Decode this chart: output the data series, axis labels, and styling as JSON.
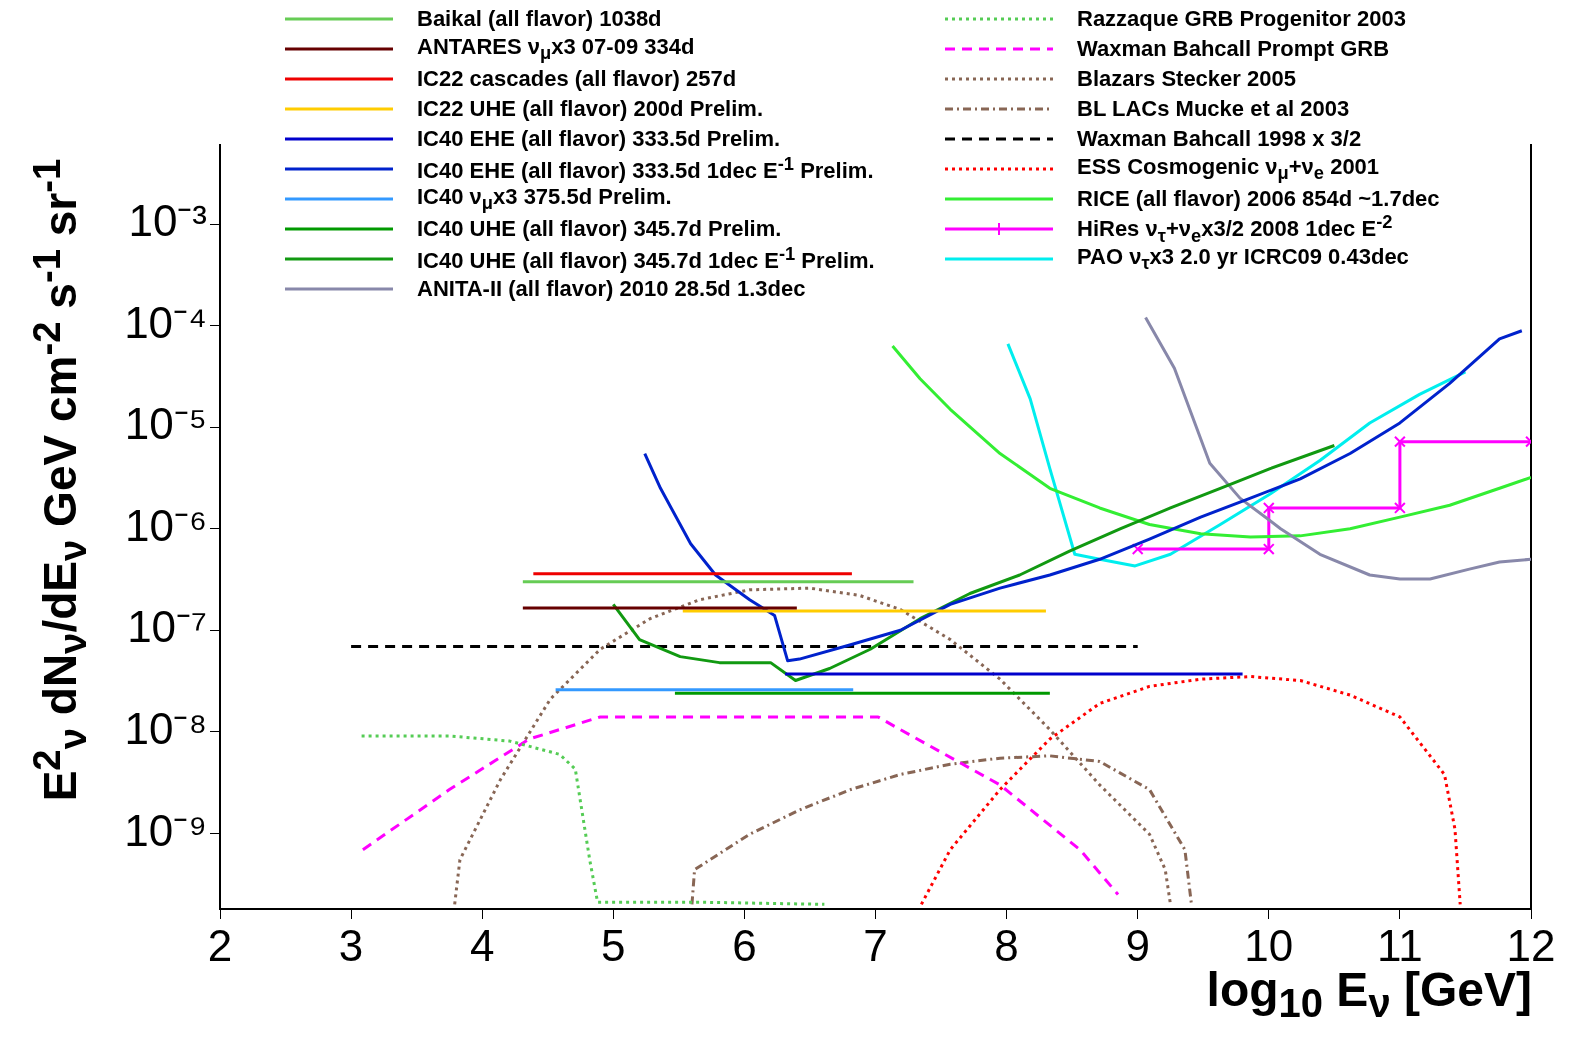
{
  "chart_data": {
    "type": "line",
    "xlabel": "log$_{10}$ E$_{ν}$ [GeV]",
    "ylabel": "E$^{2}$$_{ν}$ dN$_{ν}$/dE$_{ν}$  GeV cm$^{-2}$ s$^{-1}$ sr$^{-1}$",
    "log": "y",
    "grid": false,
    "legend": "top",
    "marker": "none",
    "xlim": [
      2,
      12
    ],
    "xticks": [
      2,
      3,
      4,
      5,
      6,
      7,
      8,
      9,
      10,
      11,
      12
    ],
    "ylim": [
      1.8e-10,
      0.006
    ],
    "yticks": [
      {
        "value": 1e-09,
        "label": "10⁻⁹"
      },
      {
        "value": 1e-08,
        "label": "10⁻⁸"
      },
      {
        "value": 1e-07,
        "label": "10⁻⁷"
      },
      {
        "value": 1e-06,
        "label": "10⁻⁶"
      },
      {
        "value": 1e-05,
        "label": "10⁻⁵"
      },
      {
        "value": 0.0001,
        "label": "10⁻⁴"
      },
      {
        "value": 0.001,
        "label": "10⁻³"
      }
    ],
    "series": [
      {
        "name": "Baikal (all flavor) 1038d",
        "color": "#66cc55",
        "line_style": "solid",
        "x": [
          4.31,
          7.29
        ],
        "values": [
          3e-07,
          3e-07
        ]
      },
      {
        "name": "ANTARES ν$_{μ}$x3 07-09 334d",
        "color": "#660000",
        "line_style": "solid",
        "x": [
          4.31,
          6.4
        ],
        "values": [
          1.66e-07,
          1.66e-07
        ]
      },
      {
        "name": "IC22 cascades (all flavor) 257d",
        "color": "#ee0000",
        "line_style": "solid",
        "x": [
          4.39,
          6.82
        ],
        "values": [
          3.6e-07,
          3.6e-07
        ]
      },
      {
        "name": "IC22 UHE (all flavor) 200d Prelim.",
        "color": "#ffcc00",
        "line_style": "solid",
        "x": [
          5.53,
          8.3
        ],
        "values": [
          1.55e-07,
          1.55e-07
        ]
      },
      {
        "name": "IC40 EHE (all flavor) 333.5d Prelim.",
        "color": "#0000cc",
        "line_style": "solid",
        "x": [
          6.31,
          9.8
        ],
        "values": [
          3.7e-08,
          3.7e-08
        ]
      },
      {
        "name": "IC40 EHE (all flavor) 333.5d 1dec E$^{-1}$ Prelim.",
        "color": "#0022cc",
        "line_style": "solid",
        "x": [
          5.24,
          5.36,
          5.59,
          5.78,
          6.04,
          6.23,
          6.33,
          6.42,
          6.81,
          7.19,
          7.57,
          7.95,
          8.33,
          8.71,
          9.09,
          9.48,
          9.86,
          10.24,
          10.62,
          11.0,
          11.38,
          11.76,
          11.93
        ],
        "values": [
          5.5e-06,
          2.5e-06,
          7.1e-07,
          3.5e-07,
          2e-07,
          1.4e-07,
          5e-08,
          5.2e-08,
          7.2e-08,
          1e-07,
          1.8e-07,
          2.6e-07,
          3.5e-07,
          5e-07,
          7.9e-07,
          1.3e-06,
          2e-06,
          3.1e-06,
          5.5e-06,
          1.1e-05,
          2.7e-05,
          7.4e-05,
          8.9e-05
        ]
      },
      {
        "name": "IC40 ν$_{μ}$x3 375.5d Prelim.",
        "color": "#3399ff",
        "line_style": "solid",
        "x": [
          4.56,
          6.83
        ],
        "values": [
          2.6e-08,
          2.6e-08
        ]
      },
      {
        "name": "IC40 UHE (all flavor) 345.7d Prelim.",
        "color": "#009900",
        "line_style": "solid",
        "x": [
          5.47,
          8.33
        ],
        "values": [
          2.4e-08,
          2.4e-08
        ]
      },
      {
        "name": "IC40 UHE (all flavor) 345.7d 1dec E$^{-1}$ Prelim.",
        "color": "#119911",
        "line_style": "solid",
        "x": [
          5.0,
          5.2,
          5.51,
          5.81,
          6.2,
          6.39,
          6.65,
          6.96,
          7.34,
          7.72,
          8.1,
          8.48,
          8.87,
          9.25,
          9.63,
          10.01,
          10.5
        ],
        "values": [
          1.8e-07,
          8.1e-08,
          5.5e-08,
          4.8e-08,
          4.8e-08,
          3.2e-08,
          4.2e-08,
          6.5e-08,
          1.3e-07,
          2.3e-07,
          3.5e-07,
          6e-07,
          1e-06,
          1.6e-06,
          2.5e-06,
          3.9e-06,
          6.6e-06
        ]
      },
      {
        "name": "ANITA-II (all flavor) 2010 28.5d 1.3dec",
        "color": "#8888aa",
        "line_style": "solid",
        "x": [
          9.06,
          9.28,
          9.55,
          9.78,
          10.09,
          10.39,
          10.77,
          11.0,
          11.23,
          11.53,
          11.76,
          12.0
        ],
        "values": [
          0.00012,
          3.8e-05,
          4.4e-06,
          2e-06,
          1e-06,
          5.6e-07,
          3.5e-07,
          3.2e-07,
          3.2e-07,
          4e-07,
          4.7e-07,
          5e-07
        ]
      },
      {
        "name": "Razzaque GRB Progenitor 2003",
        "color": "#55cc55",
        "line_style": "dotted",
        "x": [
          3.08,
          3.75,
          4.21,
          4.59,
          4.71,
          4.82,
          4.88,
          5.66,
          6.61
        ],
        "values": [
          9.1e-09,
          9.1e-09,
          8.1e-09,
          6e-09,
          4.3e-09,
          5.5e-10,
          2.1e-10,
          2.1e-10,
          2e-10
        ]
      },
      {
        "name": "Waxman Bahcall Prompt GRB",
        "color": "#ff00ff",
        "line_style": "dashed",
        "x": [
          3.09,
          3.75,
          4.36,
          4.9,
          5.66,
          7.02,
          7.19,
          7.95,
          8.56,
          8.85
        ],
        "values": [
          6.9e-10,
          2.7e-09,
          8.5e-09,
          1.4e-08,
          1.4e-08,
          1.4e-08,
          1.05e-08,
          3e-09,
          6.9e-10,
          2.5e-10
        ]
      },
      {
        "name": "Blazars Stecker 2005",
        "color": "#886655",
        "line_style": "dotted",
        "x": [
          3.79,
          3.83,
          4.14,
          4.52,
          4.9,
          5.28,
          5.66,
          6.04,
          6.5,
          6.88,
          7.19,
          7.57,
          7.95,
          8.33,
          8.71,
          9.09,
          9.21,
          9.25
        ],
        "values": [
          2e-10,
          5.5e-10,
          3.4e-09,
          2.1e-08,
          6.5e-08,
          1.3e-07,
          2e-07,
          2.5e-07,
          2.6e-07,
          2.2e-07,
          1.6e-07,
          8.1e-08,
          3.3e-08,
          1.05e-08,
          3e-09,
          9.8e-10,
          4.4e-10,
          2e-10
        ]
      },
      {
        "name": "BL LACs Mucke et al 2003",
        "color": "#886655",
        "line_style": "dashdot",
        "x": [
          5.6,
          5.62,
          6.04,
          6.42,
          6.81,
          7.19,
          7.57,
          7.95,
          8.33,
          8.71,
          9.09,
          9.36,
          9.41
        ],
        "values": [
          2e-10,
          4.4e-10,
          9.8e-10,
          1.7e-09,
          2.7e-09,
          3.8e-09,
          4.8e-09,
          5.5e-09,
          5.8e-09,
          5.1e-09,
          2.7e-09,
          6.9e-10,
          2e-10
        ]
      },
      {
        "name": "Waxman Bahcall 1998 x 3/2",
        "color": "#000000",
        "line_style": "dashed",
        "x": [
          3.0,
          9.0
        ],
        "values": [
          6.9e-08,
          6.9e-08
        ]
      },
      {
        "name": "ESS Cosmogenic ν$_{μ}$+ν$_{e}$ 2001",
        "color": "#ff0000",
        "line_style": "dotted",
        "x": [
          7.35,
          7.57,
          7.95,
          8.33,
          8.71,
          9.09,
          9.48,
          9.86,
          10.24,
          10.62,
          11.0,
          11.34,
          11.42,
          11.46
        ],
        "values": [
          2e-10,
          6.9e-10,
          2.7e-09,
          8.5e-09,
          1.9e-08,
          2.8e-08,
          3.3e-08,
          3.5e-08,
          3.2e-08,
          2.3e-08,
          1.4e-08,
          3.8e-09,
          1.1e-09,
          2e-10
        ]
      },
      {
        "name": "RICE (all flavor) 2006 854d ~1.7dec",
        "color": "#33ee33",
        "line_style": "solid",
        "x": [
          7.13,
          7.34,
          7.57,
          7.95,
          8.33,
          8.71,
          9.09,
          9.48,
          9.86,
          10.24,
          10.62,
          11.0,
          11.38,
          11.76,
          12.0
        ],
        "values": [
          6.3e-05,
          3e-05,
          1.5e-05,
          5.5e-06,
          2.5e-06,
          1.6e-06,
          1.1e-06,
          8.9e-07,
          8.3e-07,
          8.5e-07,
          1e-06,
          1.3e-06,
          1.7e-06,
          2.5e-06,
          3.2e-06
        ]
      },
      {
        "name": "HiRes ν$_{τ}$+ν$_{e}$x3/2 2008 1dec E$^{-2}$",
        "color": "#ff00ff",
        "line_style": "solid",
        "marker": "cross",
        "x": [
          9,
          10,
          10,
          11,
          11,
          12
        ],
        "values": [
          6.3e-07,
          6.3e-07,
          1.6e-06,
          1.6e-06,
          7.2e-06,
          7.2e-06
        ]
      },
      {
        "name": "PAO ν$_{τ}$x3 2.0 yr ICRC09 0.43dec",
        "color": "#00eeee",
        "line_style": "solid",
        "x": [
          8.01,
          8.18,
          8.33,
          8.52,
          8.71,
          8.98,
          9.25,
          9.63,
          10.01,
          10.39,
          10.77,
          11.15,
          11.5
        ],
        "values": [
          6.6e-05,
          1.9e-05,
          3.9e-06,
          5.6e-07,
          5e-07,
          4.3e-07,
          5.6e-07,
          1.1e-06,
          2.2e-06,
          4.7e-06,
          1.1e-05,
          2.1e-05,
          3.5e-05
        ]
      }
    ]
  }
}
